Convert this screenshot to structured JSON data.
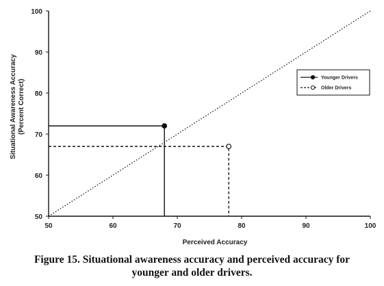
{
  "chart_data": {
    "type": "line",
    "xlabel": "Perceived Accuracy",
    "ylabel": "Situational Awareness Accuracy",
    "ylabel_sub": "(Percent Correct)",
    "xlim": [
      50,
      100
    ],
    "ylim": [
      50,
      100
    ],
    "x_ticks": [
      "50",
      "60",
      "70",
      "80",
      "90",
      "100"
    ],
    "y_ticks": [
      "50",
      "60",
      "70",
      "80",
      "90",
      "100"
    ],
    "grid": false,
    "legend_position": "right",
    "series": [
      {
        "name": "Younger Drivers",
        "line_style": "solid",
        "marker": "filled-circle",
        "point": {
          "x": 68,
          "y": 72
        },
        "x": [
          50,
          68,
          68
        ],
        "y": [
          72,
          72,
          50
        ]
      },
      {
        "name": "Older Drivers",
        "line_style": "dashed",
        "marker": "open-circle",
        "point": {
          "x": 78,
          "y": 67
        },
        "x": [
          50,
          78,
          78
        ],
        "y": [
          67,
          67,
          50
        ]
      }
    ],
    "reference_line": {
      "style": "dotted",
      "x": [
        50,
        100
      ],
      "y": [
        50,
        100
      ]
    }
  },
  "caption": {
    "line1": "Figure 15.  Situational awareness accuracy and perceived accuracy for",
    "line2": "younger and older drivers."
  }
}
